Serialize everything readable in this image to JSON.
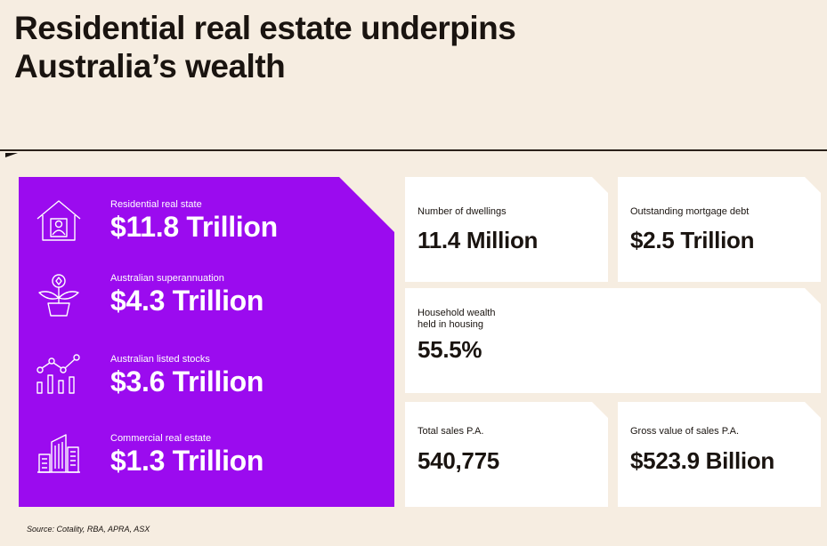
{
  "title_line1": "Residential real estate underpins",
  "title_line2": "Australia’s wealth",
  "colors": {
    "accent": "#9b0bef",
    "background": "#f6ede1",
    "text": "#1a1410"
  },
  "wealth": [
    {
      "icon": "house-person-icon",
      "label": "Residential real state",
      "value": "$11.8 Trillion"
    },
    {
      "icon": "plant-pot-coin-icon",
      "label": "Australian superannuation",
      "value": "$4.3 Trillion"
    },
    {
      "icon": "bar-line-chart-icon",
      "label": "Australian listed stocks",
      "value": "$3.6 Trillion"
    },
    {
      "icon": "office-buildings-icon",
      "label": "Commercial real estate",
      "value": "$1.3 Trillion"
    }
  ],
  "cards": {
    "dwellings": {
      "label": "Number of dwellings",
      "value": "11.4 Million"
    },
    "mortgage": {
      "label": "Outstanding mortgage debt",
      "value": "$2.5 Trillion"
    },
    "household": {
      "label": "Household wealth\nheld in housing",
      "value": "55.5%"
    },
    "sales": {
      "label": "Total sales P.A.",
      "value": "540,775"
    },
    "gross": {
      "label": "Gross value of sales P.A.",
      "value": "$523.9 Billion"
    }
  },
  "source": "Source: Cotality, RBA, APRA, ASX"
}
